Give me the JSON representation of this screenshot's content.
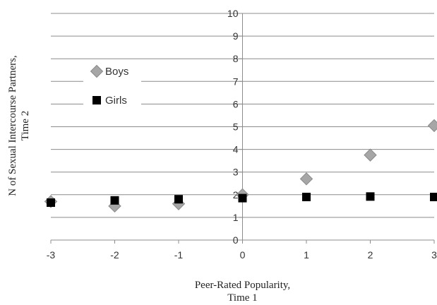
{
  "chart_data": {
    "type": "scatter",
    "xlabel_lines": [
      "Peer-Rated Popularity,",
      "Time 1"
    ],
    "ylabel_lines": [
      "N of Sexual Intercourse Partners,",
      "Time 2"
    ],
    "xlim": [
      -3,
      3
    ],
    "ylim": [
      0,
      10
    ],
    "x_ticks": [
      "-3",
      "-2",
      "-1",
      "0",
      "1",
      "2",
      "3"
    ],
    "y_ticks": [
      "0",
      "1",
      "2",
      "3",
      "4",
      "5",
      "6",
      "7",
      "8",
      "9",
      "10"
    ],
    "grid": true,
    "legend_position": "left",
    "series": [
      {
        "name": "Boys",
        "marker": "diamond",
        "color": "#a6a6a6",
        "points": [
          {
            "x": -3,
            "y": 1.7
          },
          {
            "x": -2,
            "y": 1.5
          },
          {
            "x": -1,
            "y": 1.6
          },
          {
            "x": 0,
            "y": 2.0
          },
          {
            "x": 1,
            "y": 2.7
          },
          {
            "x": 2,
            "y": 3.75
          },
          {
            "x": 3,
            "y": 5.05
          }
        ]
      },
      {
        "name": "Girls",
        "marker": "square",
        "color": "#000000",
        "points": [
          {
            "x": -3,
            "y": 1.65
          },
          {
            "x": -2,
            "y": 1.75
          },
          {
            "x": -1,
            "y": 1.8
          },
          {
            "x": 0,
            "y": 1.85
          },
          {
            "x": 1,
            "y": 1.9
          },
          {
            "x": 2,
            "y": 1.92
          },
          {
            "x": 3,
            "y": 1.9
          }
        ]
      }
    ]
  }
}
